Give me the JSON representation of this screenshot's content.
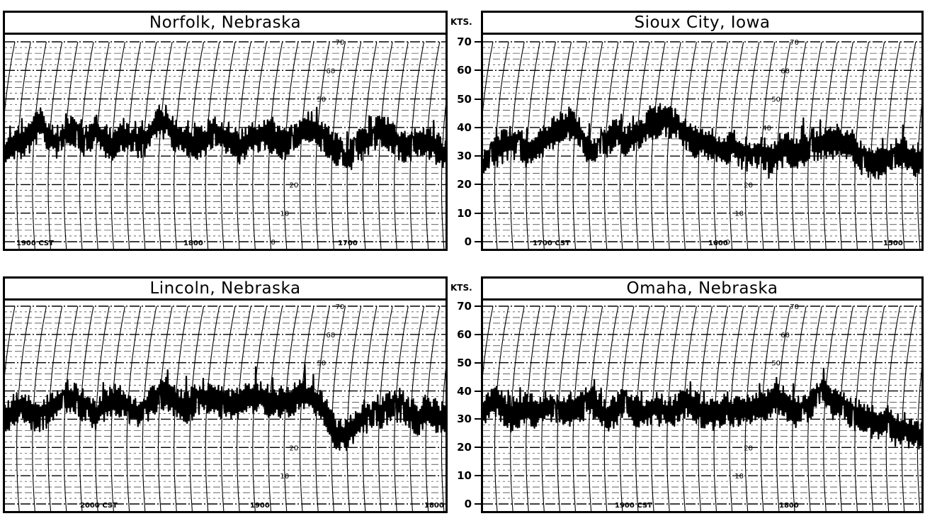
{
  "axis_unit": "KTS.",
  "chart_data": [
    {
      "type": "line",
      "title": "Norfolk, Nebraska",
      "ylabel": "KTS.",
      "ylim": [
        0,
        70
      ],
      "yticks": [
        "70",
        "60",
        "50",
        "40",
        "30",
        "20",
        "10",
        "0"
      ],
      "ring_labels": [
        "70",
        "60",
        "50",
        "20",
        "10",
        "0"
      ],
      "time_labels": [
        "1900 CST",
        "1800",
        "1700"
      ],
      "series": [
        {
          "values": [
            30,
            35,
            34,
            38,
            42,
            36,
            34,
            39,
            37,
            34,
            40,
            36,
            33,
            38,
            35,
            34,
            37,
            43,
            40,
            37,
            36,
            34,
            35,
            38,
            37,
            36,
            33,
            35,
            37,
            38,
            36,
            34,
            35,
            39,
            40,
            38,
            35,
            32,
            28,
            33,
            35,
            37,
            39,
            37,
            34,
            33,
            36,
            35,
            33,
            30
          ]
        }
      ]
    },
    {
      "type": "line",
      "title": "Sioux City, Iowa",
      "ylabel": "KTS.",
      "ylim": [
        0,
        70
      ],
      "yticks": [
        "70",
        "60",
        "50",
        "40",
        "30",
        "20",
        "10",
        "0"
      ],
      "ring_labels": [
        "70",
        "60",
        "50",
        "40",
        "20",
        "10",
        "0"
      ],
      "time_labels": [
        "1700 CST",
        "1600",
        "1500"
      ],
      "series": [
        {
          "values": [
            27,
            31,
            33,
            35,
            34,
            31,
            33,
            36,
            38,
            40,
            42,
            37,
            31,
            33,
            36,
            38,
            35,
            37,
            39,
            41,
            43,
            42,
            39,
            37,
            34,
            35,
            33,
            32,
            34,
            31,
            30,
            32,
            28,
            31,
            33,
            30,
            32,
            34,
            35,
            34,
            35,
            33,
            30,
            28,
            27,
            29,
            30,
            31,
            29,
            28
          ]
        }
      ]
    },
    {
      "type": "line",
      "title": "Lincoln, Nebraska",
      "ylabel": "KTS.",
      "ylim": [
        0,
        70
      ],
      "yticks": [
        "70",
        "60",
        "50",
        "40",
        "30",
        "20",
        "10",
        "0"
      ],
      "ring_labels": [
        "70",
        "60",
        "50",
        "40",
        "20",
        "10"
      ],
      "time_labels": [
        "2000 CST",
        "1900",
        "1800"
      ],
      "series": [
        {
          "values": [
            30,
            33,
            35,
            32,
            30,
            34,
            36,
            38,
            37,
            34,
            31,
            35,
            37,
            36,
            33,
            32,
            35,
            38,
            39,
            36,
            34,
            36,
            38,
            37,
            36,
            35,
            36,
            37,
            38,
            37,
            36,
            35,
            37,
            39,
            38,
            36,
            30,
            24,
            25,
            28,
            31,
            30,
            33,
            34,
            35,
            32,
            30,
            33,
            31,
            30
          ]
        }
      ]
    },
    {
      "type": "line",
      "title": "Omaha, Nebraska",
      "ylabel": "KTS.",
      "ylim": [
        0,
        70
      ],
      "yticks": [
        "70",
        "60",
        "50",
        "40",
        "30",
        "20",
        "10",
        "0"
      ],
      "ring_labels": [
        "70",
        "60",
        "50",
        "20",
        "10"
      ],
      "time_labels": [
        "1900 CST",
        "1800"
      ],
      "series": [
        {
          "values": [
            33,
            36,
            34,
            31,
            33,
            34,
            32,
            35,
            33,
            32,
            34,
            35,
            37,
            33,
            31,
            34,
            36,
            33,
            32,
            34,
            33,
            32,
            35,
            36,
            34,
            31,
            32,
            34,
            33,
            34,
            33,
            35,
            36,
            37,
            35,
            33,
            34,
            37,
            40,
            36,
            34,
            33,
            31,
            30,
            28,
            30,
            26,
            27,
            25,
            23
          ]
        }
      ]
    }
  ]
}
